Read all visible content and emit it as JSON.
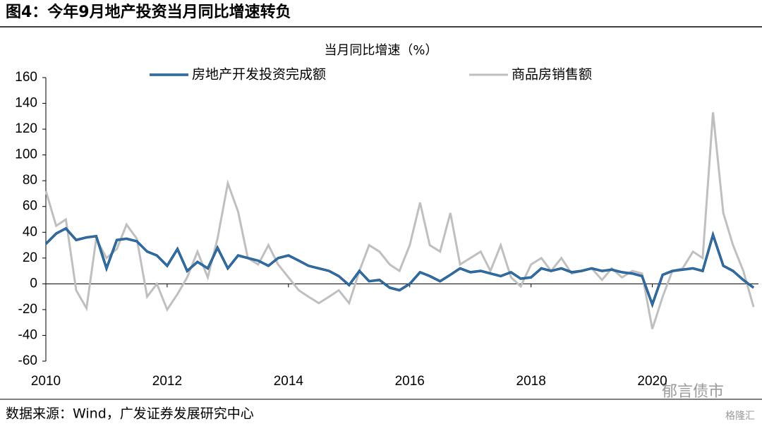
{
  "header": {
    "title": "图4：今年9月地产投资当月同比增速转负"
  },
  "chart_data": {
    "type": "line",
    "y_label": "当月同比增速（%）",
    "x": [
      2010.0,
      2010.17,
      2010.33,
      2010.5,
      2010.67,
      2010.83,
      2011.0,
      2011.17,
      2011.33,
      2011.5,
      2011.67,
      2011.83,
      2012.0,
      2012.17,
      2012.33,
      2012.5,
      2012.67,
      2012.83,
      2013.0,
      2013.17,
      2013.33,
      2013.5,
      2013.67,
      2013.83,
      2014.0,
      2014.17,
      2014.33,
      2014.5,
      2014.67,
      2014.83,
      2015.0,
      2015.17,
      2015.33,
      2015.5,
      2015.67,
      2015.83,
      2016.0,
      2016.17,
      2016.33,
      2016.5,
      2016.67,
      2016.83,
      2017.0,
      2017.17,
      2017.33,
      2017.5,
      2017.67,
      2017.83,
      2018.0,
      2018.17,
      2018.33,
      2018.5,
      2018.67,
      2018.83,
      2019.0,
      2019.17,
      2019.33,
      2019.5,
      2019.67,
      2019.83,
      2020.0,
      2020.17,
      2020.33,
      2020.5,
      2020.67,
      2020.83,
      2021.0,
      2021.17,
      2021.33,
      2021.5,
      2021.67
    ],
    "series": [
      {
        "name": "房地产开发投资完成额",
        "color": "#2e75b6",
        "values": [
          31,
          39,
          43,
          34,
          36,
          37,
          12,
          34,
          35,
          33,
          25,
          22,
          14,
          27,
          10,
          17,
          12,
          28,
          12,
          22,
          20,
          18,
          14,
          20,
          22,
          18,
          14,
          12,
          10,
          6,
          -1,
          10,
          2,
          3,
          -3,
          -5,
          0,
          9,
          6,
          2,
          7,
          12,
          9,
          10,
          8,
          6,
          9,
          4,
          5,
          12,
          10,
          12,
          9,
          10,
          12,
          10,
          11,
          9,
          8,
          6,
          -16,
          7,
          10,
          11,
          12,
          10,
          38,
          14,
          10,
          3,
          -3
        ]
      },
      {
        "name": "商品房销售额",
        "color": "#bfbfbf",
        "values": [
          72,
          45,
          50,
          -5,
          -19,
          35,
          20,
          27,
          46,
          35,
          -10,
          0,
          -20,
          -8,
          5,
          25,
          5,
          35,
          78,
          56,
          20,
          15,
          30,
          15,
          5,
          -5,
          -10,
          -15,
          -10,
          -5,
          -15,
          10,
          30,
          25,
          15,
          10,
          30,
          63,
          30,
          25,
          55,
          15,
          20,
          25,
          10,
          30,
          5,
          -2,
          15,
          20,
          10,
          20,
          8,
          10,
          12,
          3,
          12,
          5,
          10,
          8,
          -35,
          -10,
          10,
          12,
          25,
          20,
          133,
          55,
          30,
          10,
          -18
        ]
      }
    ],
    "xlim": [
      2010,
      2021.75
    ],
    "xticks": [
      2010,
      2012,
      2014,
      2016,
      2018,
      2020
    ],
    "ylim": [
      -60,
      160
    ],
    "yticks": [
      -60,
      -40,
      -20,
      0,
      20,
      40,
      60,
      80,
      100,
      120,
      140,
      160
    ]
  },
  "source": "数据来源：Wind，广发证券发展研究中心",
  "watermark": {
    "account": "郁言债市",
    "brand": "格隆汇"
  }
}
